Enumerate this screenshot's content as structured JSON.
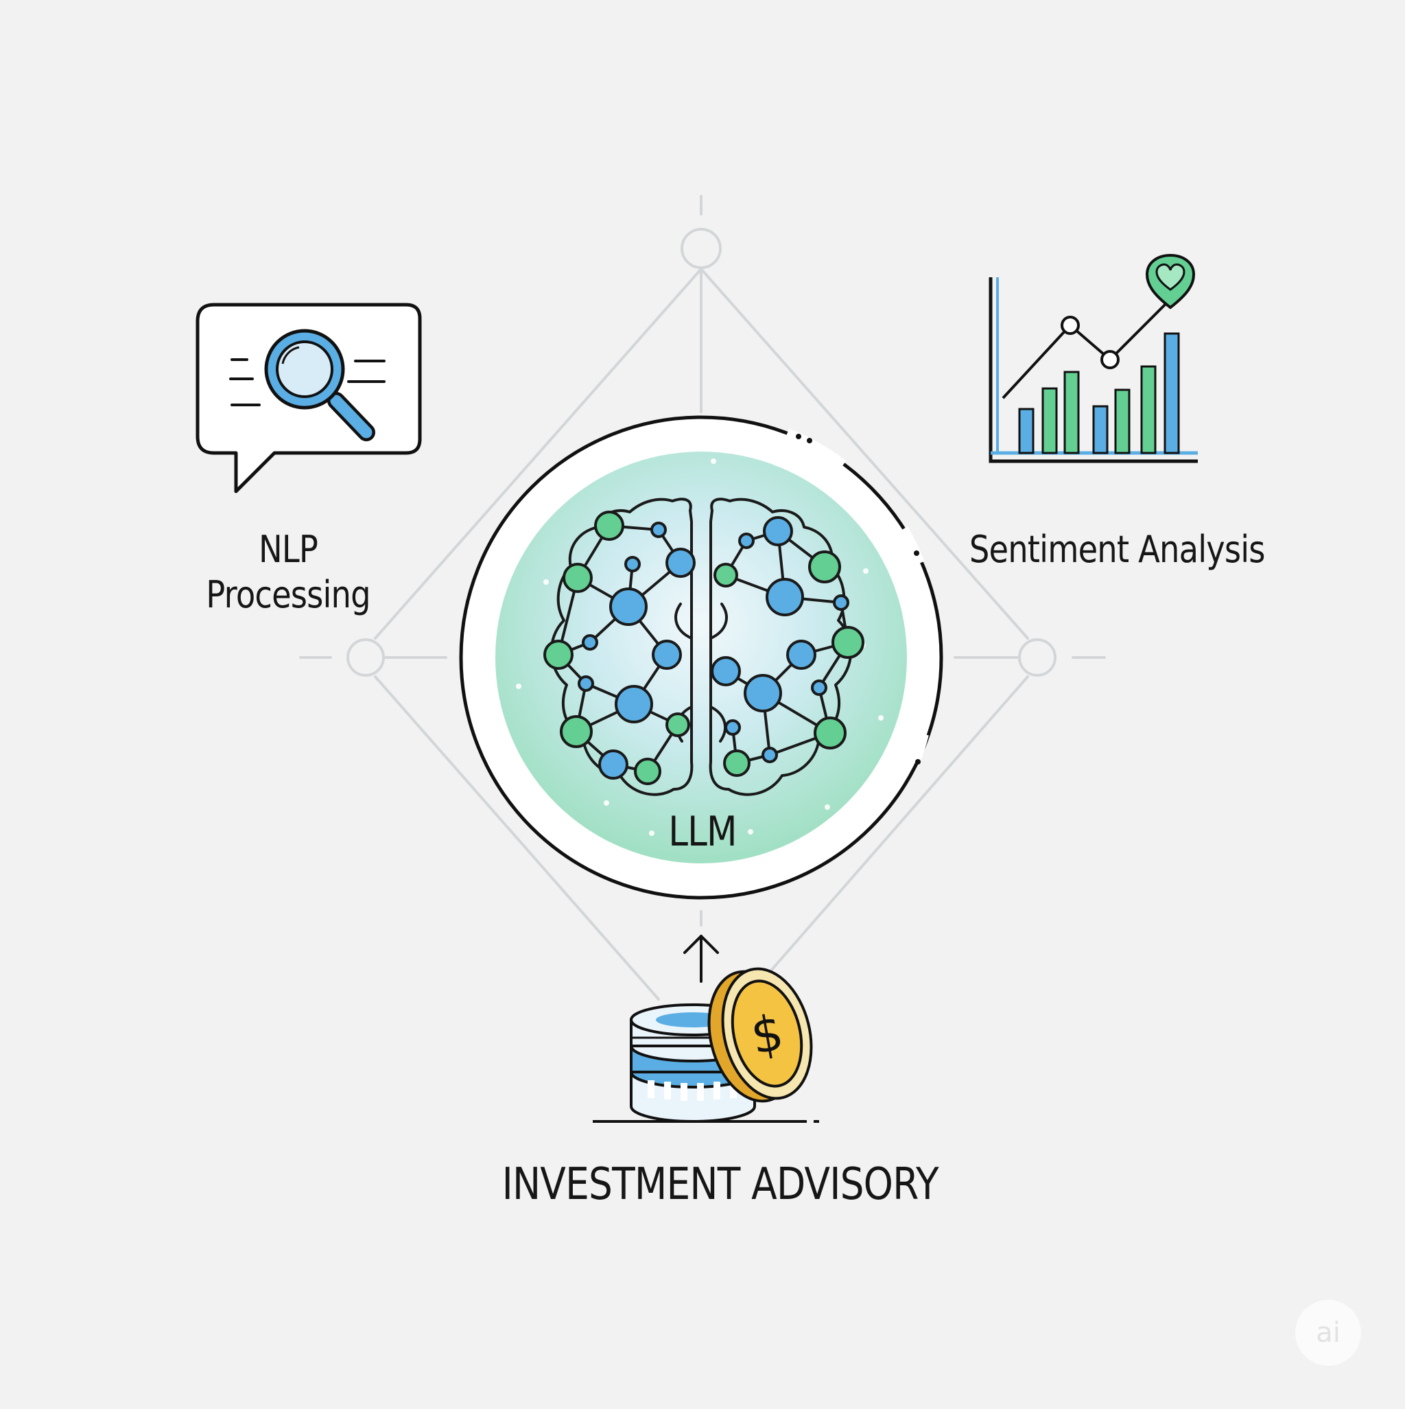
{
  "diagram": {
    "center": {
      "label": "LLM"
    },
    "nodes": [
      {
        "id": "nlp",
        "title_line1": "NLP",
        "title_line2": "Processing",
        "icon": "magnifier-speech-bubble-icon"
      },
      {
        "id": "sentiment",
        "title": "Sentiment Analysis",
        "icon": "bar-line-chart-heart-icon"
      },
      {
        "id": "investment",
        "title": "INVESTMENT ADVISORY",
        "icon": "database-coin-icon"
      }
    ],
    "badge": "ai"
  },
  "colors": {
    "background": "#f2f2f2",
    "connector": "#d3d6d8",
    "outline": "#111111",
    "blue": "#5aaee3",
    "green": "#63cf92",
    "gold": "#f5c342"
  }
}
